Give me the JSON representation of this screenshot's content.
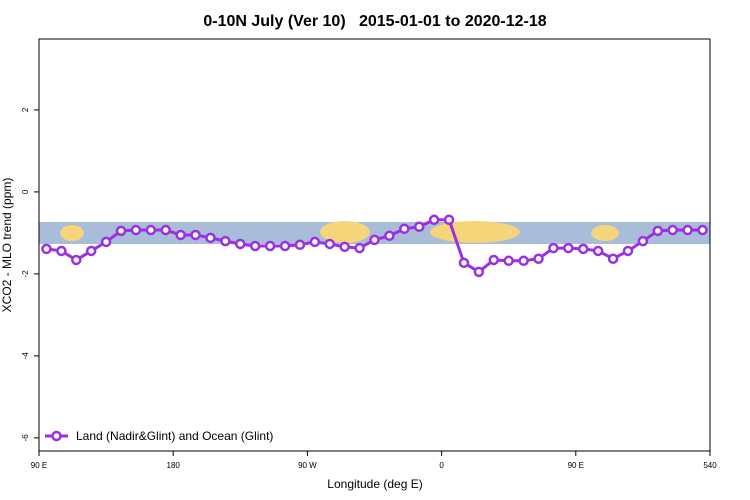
{
  "chart_data": {
    "type": "line",
    "title": "0-10N July (Ver 10)   2015-01-01 to 2020-12-18",
    "xlabel": "Longitude (deg E)",
    "ylabel": "XCO2 - MLO trend (ppm)",
    "x": [
      95,
      105,
      115,
      125,
      135,
      145,
      155,
      165,
      175,
      185,
      195,
      205,
      215,
      225,
      235,
      245,
      255,
      265,
      275,
      285,
      295,
      305,
      315,
      325,
      335,
      345,
      355,
      365,
      375,
      385,
      395,
      405,
      415,
      425,
      435,
      445,
      455,
      465,
      475,
      485,
      495,
      505,
      515,
      525,
      535
    ],
    "series": [
      {
        "name": "Land (Nadir&Glint) and Ocean (Glint)",
        "color": "#9b30e0",
        "values": [
          -1.39,
          -1.44,
          -1.66,
          -1.44,
          -1.22,
          -0.95,
          -0.93,
          -0.93,
          -0.93,
          -1.05,
          -1.05,
          -1.12,
          -1.2,
          -1.27,
          -1.32,
          -1.32,
          -1.32,
          -1.29,
          -1.22,
          -1.27,
          -1.34,
          -1.37,
          -1.17,
          -1.07,
          -0.9,
          -0.85,
          -0.68,
          -0.68,
          -1.73,
          -1.95,
          -1.66,
          -1.68,
          -1.68,
          -1.63,
          -1.37,
          -1.37,
          -1.39,
          -1.44,
          -1.63,
          -1.44,
          -1.2,
          -0.95,
          -0.93,
          -0.93,
          -0.93
        ]
      }
    ],
    "xlim": [
      90,
      540
    ],
    "xticks": [
      {
        "value": 90,
        "label": "90 E"
      },
      180,
      {
        "value": 270,
        "label": "90 W"
      },
      {
        "value": 360,
        "label": "0"
      },
      {
        "value": 450,
        "label": "90 E"
      },
      540
    ],
    "ylim": [
      -6.32,
      3.73
    ],
    "yticks": [
      -6,
      -4,
      -2,
      0,
      2
    ],
    "legend": "bottom-left"
  }
}
